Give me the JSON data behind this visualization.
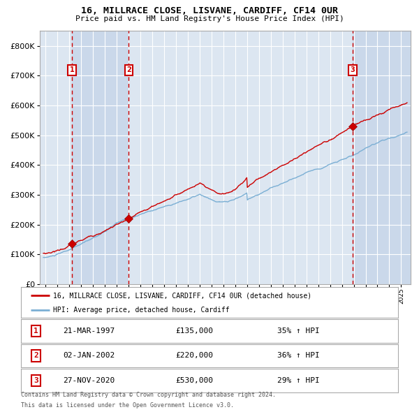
{
  "title": "16, MILLRACE CLOSE, LISVANE, CARDIFF, CF14 0UR",
  "subtitle": "Price paid vs. HM Land Registry's House Price Index (HPI)",
  "legend_label_red": "16, MILLRACE CLOSE, LISVANE, CARDIFF, CF14 0UR (detached house)",
  "legend_label_blue": "HPI: Average price, detached house, Cardiff",
  "footer_line1": "Contains HM Land Registry data © Crown copyright and database right 2024.",
  "footer_line2": "This data is licensed under the Open Government Licence v3.0.",
  "transactions": [
    {
      "num": 1,
      "date": "21-MAR-1997",
      "price": 135000,
      "hpi_pct": "35% ↑ HPI"
    },
    {
      "num": 2,
      "date": "02-JAN-2002",
      "price": 220000,
      "hpi_pct": "36% ↑ HPI"
    },
    {
      "num": 3,
      "date": "27-NOV-2020",
      "price": 530000,
      "hpi_pct": "29% ↑ HPI"
    }
  ],
  "transaction_dates_decimal": [
    1997.22,
    2002.01,
    2020.91
  ],
  "ylim": [
    0,
    850000
  ],
  "xlim_start": 1994.5,
  "xlim_end": 2025.8,
  "background_color": "#ffffff",
  "plot_bg_color": "#dce6f1",
  "shaded_color": "#cad8ea",
  "grid_color": "#ffffff",
  "red_line_color": "#cc0000",
  "blue_line_color": "#7bafd4",
  "dashed_line_color": "#cc0000",
  "marker_color": "#cc0000",
  "annotation_box_color": "#cc0000",
  "ytick_values": [
    0,
    100000,
    200000,
    300000,
    400000,
    500000,
    600000,
    700000,
    800000
  ]
}
